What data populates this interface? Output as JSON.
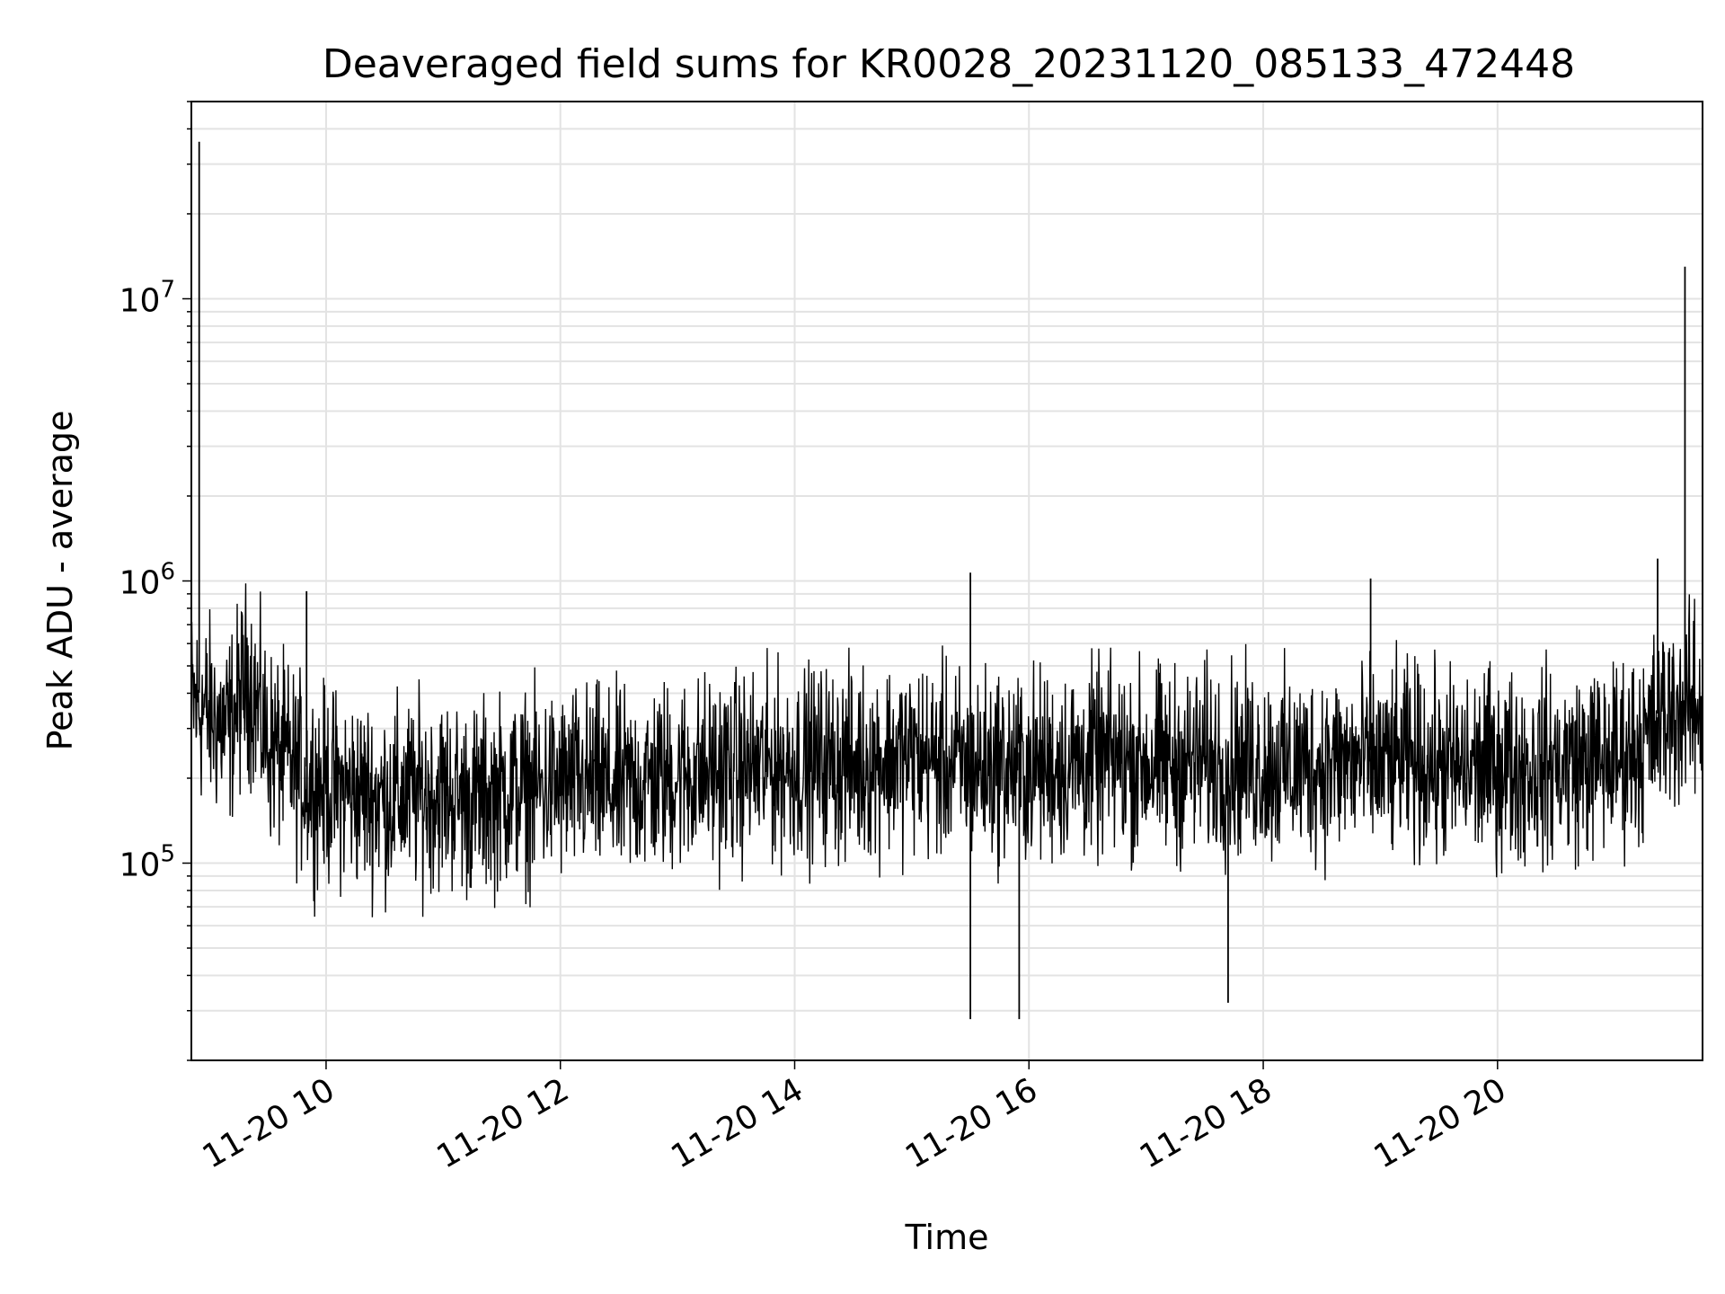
{
  "chart_data": {
    "type": "line",
    "title": "Deaveraged field sums for KR0028_20231120_085133_472448",
    "xlabel": "Time",
    "ylabel": "Peak ADU - average",
    "yscale": "log",
    "xlim": [
      "2023-11-20 08:51",
      "2023-11-20 21:45"
    ],
    "ylim": [
      20000,
      50000000
    ],
    "grid": true,
    "x_tick_labels": [
      "11-20 10",
      "11-20 12",
      "11-20 14",
      "11-20 16",
      "11-20 18",
      "11-20 20"
    ],
    "x_tick_hours": [
      10,
      12,
      14,
      16,
      18,
      20
    ],
    "y_tick_labels": [
      {
        "base": "10",
        "exp": "5",
        "value": 100000
      },
      {
        "base": "10",
        "exp": "6",
        "value": 1000000
      },
      {
        "base": "10",
        "exp": "7",
        "value": 10000000
      }
    ],
    "line_color": "#000000",
    "series": [
      {
        "x": [
          "2023-11-20 08:51",
          "2023-11-20 09:00",
          "2023-11-20 09:10",
          "2023-11-20 09:20",
          "2023-11-20 09:30",
          "2023-11-20 09:40",
          "2023-11-20 09:50",
          "2023-11-20 10:00",
          "2023-11-20 10:15",
          "2023-11-20 10:30",
          "2023-11-20 10:45",
          "2023-11-20 11:00",
          "2023-11-20 11:15",
          "2023-11-20 11:30",
          "2023-11-20 11:45",
          "2023-11-20 12:00",
          "2023-11-20 12:15",
          "2023-11-20 12:30",
          "2023-11-20 12:45",
          "2023-11-20 13:00",
          "2023-11-20 13:15",
          "2023-11-20 13:30",
          "2023-11-20 13:45",
          "2023-11-20 14:00",
          "2023-11-20 14:15",
          "2023-11-20 14:30",
          "2023-11-20 14:45",
          "2023-11-20 15:00",
          "2023-11-20 15:15",
          "2023-11-20 15:30",
          "2023-11-20 15:45",
          "2023-11-20 16:00",
          "2023-11-20 16:15",
          "2023-11-20 16:30",
          "2023-11-20 16:45",
          "2023-11-20 17:00",
          "2023-11-20 17:15",
          "2023-11-20 17:30",
          "2023-11-20 17:45",
          "2023-11-20 18:00",
          "2023-11-20 18:15",
          "2023-11-20 18:30",
          "2023-11-20 18:45",
          "2023-11-20 19:00",
          "2023-11-20 19:15",
          "2023-11-20 19:30",
          "2023-11-20 19:45",
          "2023-11-20 20:00",
          "2023-11-20 20:15",
          "2023-11-20 20:30",
          "2023-11-20 20:45",
          "2023-11-20 21:00",
          "2023-11-20 21:15",
          "2023-11-20 21:30",
          "2023-11-20 21:45"
        ],
        "y": [
          420000,
          380000,
          330000,
          520000,
          300000,
          260000,
          220000,
          210000,
          200000,
          190000,
          195000,
          200000,
          185000,
          200000,
          205000,
          210000,
          215000,
          205000,
          220000,
          230000,
          235000,
          240000,
          245000,
          250000,
          255000,
          250000,
          265000,
          270000,
          255000,
          245000,
          250000,
          245000,
          250000,
          255000,
          260000,
          255000,
          250000,
          260000,
          255000,
          250000,
          245000,
          250000,
          255000,
          250000,
          260000,
          245000,
          240000,
          250000,
          245000,
          250000,
          255000,
          265000,
          300000,
          390000,
          400000
        ]
      }
    ],
    "noise_range_decades": [
      -0.55,
      0.45
    ],
    "spikes": [
      {
        "x": "2023-11-20 08:55",
        "y": 36000000
      },
      {
        "x": "2023-11-20 21:36",
        "y": 13000000
      },
      {
        "x": "2023-11-20 21:22",
        "y": 1200000
      },
      {
        "x": "2023-11-20 15:30",
        "y": 1070000
      },
      {
        "x": "2023-11-20 18:55",
        "y": 1020000
      },
      {
        "x": "2023-11-20 09:50",
        "y": 920000
      },
      {
        "x": "2023-11-20 15:30",
        "y": 28000
      },
      {
        "x": "2023-11-20 15:55",
        "y": 28000
      },
      {
        "x": "2023-11-20 17:42",
        "y": 32000
      }
    ]
  }
}
